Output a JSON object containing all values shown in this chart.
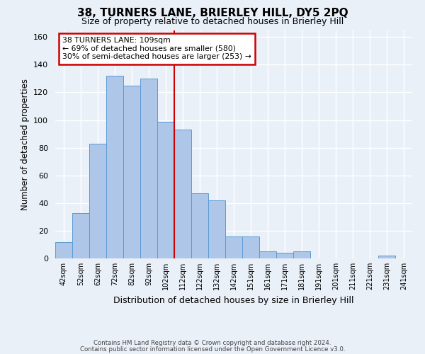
{
  "title": "38, TURNERS LANE, BRIERLEY HILL, DY5 2PQ",
  "subtitle": "Size of property relative to detached houses in Brierley Hill",
  "xlabel": "Distribution of detached houses by size in Brierley Hill",
  "ylabel": "Number of detached properties",
  "bar_labels": [
    "42sqm",
    "52sqm",
    "62sqm",
    "72sqm",
    "82sqm",
    "92sqm",
    "102sqm",
    "112sqm",
    "122sqm",
    "132sqm",
    "142sqm",
    "151sqm",
    "161sqm",
    "171sqm",
    "181sqm",
    "191sqm",
    "201sqm",
    "211sqm",
    "221sqm",
    "231sqm",
    "241sqm"
  ],
  "bar_values": [
    12,
    33,
    83,
    132,
    125,
    130,
    99,
    93,
    47,
    42,
    16,
    16,
    5,
    4,
    5,
    0,
    0,
    0,
    0,
    2,
    0
  ],
  "bar_color": "#aec6e8",
  "bar_edge_color": "#5b9bd5",
  "vline_x": 6.5,
  "ylim": [
    0,
    165
  ],
  "yticks": [
    0,
    20,
    40,
    60,
    80,
    100,
    120,
    140,
    160
  ],
  "annotation_text": "38 TURNERS LANE: 109sqm\n← 69% of detached houses are smaller (580)\n30% of semi-detached houses are larger (253) →",
  "annotation_box_color": "#ffffff",
  "annotation_box_edge": "#cc0000",
  "background_color": "#eaf0f8",
  "grid_color": "#ffffff",
  "footer_line1": "Contains HM Land Registry data © Crown copyright and database right 2024.",
  "footer_line2": "Contains public sector information licensed under the Open Government Licence v3.0."
}
